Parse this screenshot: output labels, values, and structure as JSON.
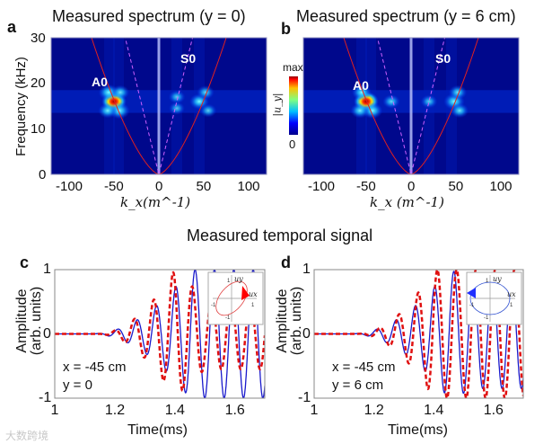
{
  "panels": {
    "a": {
      "label": "a",
      "title": "Measured spectrum (y = 0)",
      "mode_a0": "A0",
      "mode_s0": "S0"
    },
    "b": {
      "label": "b",
      "title": "Measured spectrum (y = 6 cm)",
      "mode_a0": "A0",
      "mode_s0": "S0"
    },
    "c": {
      "label": "c",
      "note_x": "x = -45 cm",
      "note_y": "y =  0"
    },
    "d": {
      "label": "d",
      "note_x": "x = -45 cm",
      "note_y": "y =  6 cm"
    }
  },
  "spectrum_axes": {
    "ylabel": "Frequency (kHz)",
    "xlabel": "k_x(m^-1)",
    "yticks": [
      "0",
      "10",
      "20",
      "30"
    ],
    "xticks": [
      "-100",
      "-50",
      "0",
      "50",
      "100"
    ]
  },
  "colorbar": {
    "max": "max",
    "min": "0",
    "label": "|u_y|"
  },
  "section_title": "Measured temporal signal",
  "signal_axes": {
    "ylabel1": "Amplitude",
    "ylabel2": "(arb. units)",
    "xlabel": "Time(ms)",
    "yticks": [
      "-1",
      "0",
      "1"
    ],
    "xticks": [
      "1",
      "1.2",
      "1.4",
      "1.6"
    ]
  },
  "inset": {
    "ux": "u_x",
    "uy": "u_y",
    "ticks": [
      "-1",
      "1",
      "1",
      "-1"
    ]
  },
  "watermark": "大数跨境",
  "colors": {
    "blue": "#1a1acc",
    "red": "#e01010",
    "bg": "#00088c"
  },
  "chart_data": [
    {
      "type": "heatmap",
      "panel": "a",
      "xlim": [
        -120,
        120
      ],
      "ylim": [
        0,
        30
      ],
      "xlabel": "k_x (m^-1)",
      "ylabel": "Frequency (kHz)",
      "peaks": [
        {
          "k": -50,
          "f": 16,
          "v": 1.0
        },
        {
          "k": -56,
          "f": 18,
          "v": 0.55
        },
        {
          "k": -44,
          "f": 14,
          "v": 0.6
        },
        {
          "k": -57,
          "f": 14,
          "v": 0.45
        },
        {
          "k": -43,
          "f": 18,
          "v": 0.4
        },
        {
          "k": 45,
          "f": 16,
          "v": 0.5
        },
        {
          "k": 52,
          "f": 18,
          "v": 0.35
        },
        {
          "k": 20,
          "f": 17,
          "v": 0.3
        },
        {
          "k": 20,
          "f": 14.5,
          "v": 0.25
        },
        {
          "k": 55,
          "f": 14,
          "v": 0.3
        }
      ],
      "curves": {
        "A0": "f=0.0462*|k|^1.5",
        "S0": "f=0.8*|k|"
      }
    },
    {
      "type": "heatmap",
      "panel": "b",
      "xlim": [
        -120,
        120
      ],
      "ylim": [
        0,
        30
      ],
      "xlabel": "k_x (m^-1)",
      "ylabel": "Frequency (kHz)",
      "peaks": [
        {
          "k": -50,
          "f": 16,
          "v": 1.0
        },
        {
          "k": -55,
          "f": 18,
          "v": 0.5
        },
        {
          "k": -43,
          "f": 14,
          "v": 0.55
        },
        {
          "k": -57,
          "f": 14,
          "v": 0.45
        },
        {
          "k": -22,
          "f": 16,
          "v": 0.35
        },
        {
          "k": 48,
          "f": 16,
          "v": 0.6
        },
        {
          "k": 52,
          "f": 18,
          "v": 0.4
        },
        {
          "k": 20,
          "f": 16,
          "v": 0.3
        },
        {
          "k": 54,
          "f": 14,
          "v": 0.4
        }
      ],
      "curves": {
        "A0": "f=0.0462*|k|^1.5",
        "S0": "f=0.8*|k|"
      }
    },
    {
      "type": "line",
      "panel": "c",
      "xlim": [
        1,
        1.7
      ],
      "ylim": [
        -1,
        1
      ],
      "xlabel": "Time(ms)",
      "ylabel": "Amplitude (arb. units)",
      "series": [
        {
          "name": "u_x",
          "style": "solid",
          "color": "#1a1acc",
          "freq_khz": 15.5,
          "phase": 0,
          "onset": 1.12,
          "rise_end": 1.45,
          "late_amp": 1.0
        },
        {
          "name": "u_y",
          "style": "dashed",
          "color": "#e01010",
          "freq_khz": 15.5,
          "phase": 0.9,
          "onset": 1.14,
          "rise_end": 1.4,
          "late_amp": 0.55
        }
      ]
    },
    {
      "type": "line",
      "panel": "d",
      "xlim": [
        1,
        1.7
      ],
      "ylim": [
        -1,
        1
      ],
      "xlabel": "Time(ms)",
      "ylabel": "Amplitude (arb. units)",
      "series": [
        {
          "name": "u_x",
          "style": "solid",
          "color": "#1a1acc",
          "freq_khz": 15.5,
          "phase": 0,
          "onset": 1.12,
          "rise_end": 1.45,
          "late_amp": 0.85
        },
        {
          "name": "u_y",
          "style": "dashed",
          "color": "#e01010",
          "freq_khz": 15.5,
          "phase": -0.9,
          "onset": 1.14,
          "rise_end": 1.4,
          "late_amp": 1.0
        }
      ]
    }
  ]
}
